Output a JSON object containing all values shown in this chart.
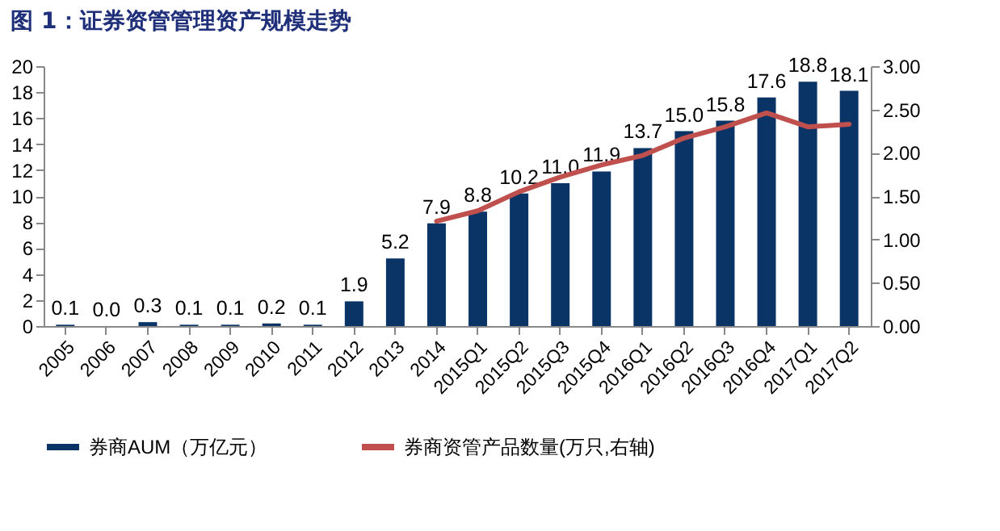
{
  "chart_data": {
    "type": "bar",
    "title": "图 1：证券资管管理资产规模走势",
    "categories": [
      "2005",
      "2006",
      "2007",
      "2008",
      "2009",
      "2010",
      "2011",
      "2012",
      "2013",
      "2014",
      "2015Q1",
      "2015Q2",
      "2015Q3",
      "2015Q4",
      "2016Q1",
      "2016Q2",
      "2016Q3",
      "2016Q4",
      "2017Q1",
      "2017Q2"
    ],
    "series": [
      {
        "name": "券商AUM（万亿元）",
        "type": "bar",
        "color": "#0b3466",
        "values": [
          0.1,
          0.0,
          0.3,
          0.1,
          0.1,
          0.2,
          0.1,
          1.9,
          5.2,
          7.9,
          8.8,
          10.2,
          11.0,
          11.9,
          13.7,
          15.0,
          15.8,
          17.6,
          18.8,
          18.1
        ],
        "value_labels": [
          "0.1",
          "0.0",
          "0.3",
          "0.1",
          "0.1",
          "0.2",
          "0.1",
          "1.9",
          "5.2",
          "7.9",
          "8.8",
          "10.2",
          "11.0",
          "11.9",
          "13.7",
          "15.0",
          "15.8",
          "17.6",
          "18.8",
          "18.1"
        ]
      },
      {
        "name": "券商资管产品数量(万只,右轴)",
        "type": "line",
        "axis": "y2",
        "color": "#c0504d",
        "values": [
          null,
          null,
          null,
          null,
          null,
          null,
          null,
          null,
          null,
          1.21,
          1.33,
          1.55,
          1.72,
          1.86,
          1.97,
          2.17,
          2.3,
          2.46,
          2.3,
          2.33
        ]
      }
    ],
    "ylim": [
      0,
      20
    ],
    "yticks": [
      0,
      2,
      4,
      6,
      8,
      10,
      12,
      14,
      16,
      18,
      20
    ],
    "y2lim": [
      0,
      3
    ],
    "y2ticks": [
      {
        "value": 0,
        "label": "0.00"
      },
      {
        "value": 0.5,
        "label": "0.50"
      },
      {
        "value": 1,
        "label": "1.00"
      },
      {
        "value": 1.5,
        "label": "1.50"
      },
      {
        "value": 2,
        "label": "2.00"
      },
      {
        "value": 2.5,
        "label": "2.50"
      },
      {
        "value": 3,
        "label": "3.00"
      }
    ],
    "grid": false,
    "legend": "bottom",
    "marker": "none",
    "line_style": "solid"
  }
}
